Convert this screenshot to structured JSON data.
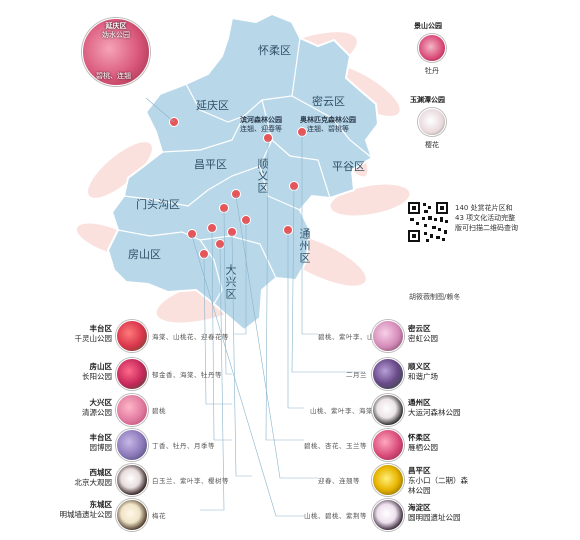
{
  "map": {
    "districts": [
      "怀柔区",
      "延庆区",
      "密云区",
      "昌平区",
      "顺义区",
      "平谷区",
      "门头沟区",
      "房山区",
      "通州区",
      "大兴区"
    ],
    "map_parks": [
      {
        "name": "滨河森林公园",
        "flowers": "连翘、迎春等"
      },
      {
        "name": "奥林匹克森林公园",
        "flowers": "连翘、碧桃等"
      }
    ]
  },
  "callout_yanqing": {
    "district": "延庆区",
    "park": "妫水公园",
    "flowers": "碧桃、连翘"
  },
  "right_top": [
    {
      "park": "景山公园",
      "flowers": "牡丹"
    },
    {
      "park": "玉渊潭公园",
      "flowers": "樱花"
    }
  ],
  "qr_note": "140 处赏花片区和 43 项文化活动完整版可扫描二维码查询",
  "credit": "胡筱薇制图/赖冬",
  "left_list": [
    {
      "district": "丰台区",
      "park": "千灵山公园",
      "flowers": "海棠、山桃花、迎春花等",
      "color": "#d8344a"
    },
    {
      "district": "房山区",
      "park": "长阳公园",
      "flowers": "郁金香、海棠、牡丹等",
      "color": "#c4265a"
    },
    {
      "district": "大兴区",
      "park": "清源公园",
      "flowers": "碧桃",
      "color": "#e07aa0"
    },
    {
      "district": "丰台区",
      "park": "园博园",
      "flowers": "丁香、牡丹、月季等",
      "color": "#8a78b8"
    },
    {
      "district": "西城区",
      "park": "北京大观园",
      "flowers": "白玉兰、紫叶李、樱树等",
      "color": "#3a2a2a"
    },
    {
      "district": "东城区",
      "park": "明城墙遗址公园",
      "flowers": "梅花",
      "color": "#4a3a2a"
    }
  ],
  "right_list": [
    {
      "district": "密云区",
      "park": "密虹公园",
      "flowers": "碧桃、紫叶李、山桃等",
      "color": "#d48ab8"
    },
    {
      "district": "顺义区",
      "park": "和谐广场",
      "flowers": "二月兰",
      "color": "#6a4a8a"
    },
    {
      "district": "通州区",
      "park": "大运河森林公园",
      "flowers": "山桃、紫叶李、海棠等",
      "color": "#2a2a2a"
    },
    {
      "district": "怀柔区",
      "park": "雁栖公园",
      "flowers": "碧桃、杏花、玉兰等",
      "color": "#d84a78"
    },
    {
      "district": "昌平区",
      "park": "东小口（二期）森林公园",
      "flowers": "迎春、连翘等",
      "color": "#e8b400"
    },
    {
      "district": "海淀区",
      "park": "圆明园遗址公园",
      "flowers": "山桃、碧桃、紫荆等",
      "color": "#3a2a3a"
    }
  ]
}
